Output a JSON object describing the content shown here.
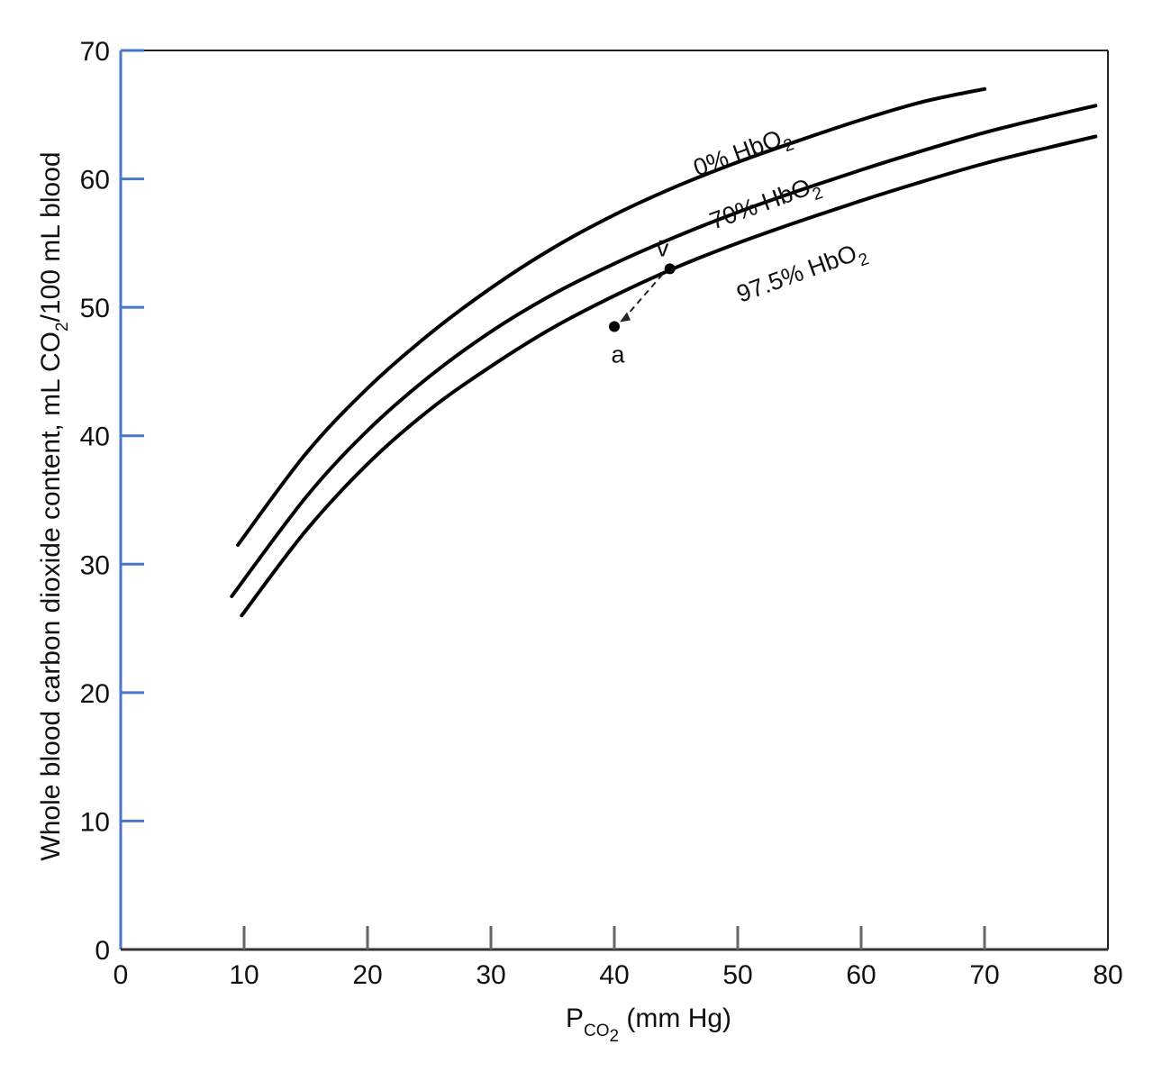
{
  "chart_data": {
    "type": "line",
    "title": "",
    "xlabel": {
      "main": "P",
      "sub": "CO",
      "subsub": "2",
      "unit": " (mm Hg)"
    },
    "ylabel": {
      "part1": "Whole blood carbon dioxide content, mL CO",
      "sub": "2",
      "part2": "/100 mL blood"
    },
    "xlim": [
      0,
      80
    ],
    "ylim": [
      0,
      70
    ],
    "xticks": [
      0,
      10,
      20,
      30,
      40,
      50,
      60,
      70,
      80
    ],
    "yticks": [
      0,
      10,
      20,
      30,
      40,
      50,
      60,
      70
    ],
    "grid": false,
    "colors": {
      "curve": "#000000",
      "axis": "#4a78c8",
      "frame": "#222222"
    },
    "series": [
      {
        "label": {
          "main": "0% HbO",
          "sub": "2"
        },
        "x": [
          9.5,
          15,
          20,
          25,
          30,
          35,
          40,
          45,
          50,
          55,
          60,
          65,
          70
        ],
        "y": [
          31.5,
          38.6,
          43.7,
          47.9,
          51.5,
          54.6,
          57.2,
          59.4,
          61.3,
          63.0,
          64.6,
          66.0,
          67.0
        ]
      },
      {
        "label": {
          "main": "70% HbO",
          "sub": "2"
        },
        "x": [
          9,
          15,
          20,
          25,
          30,
          35,
          40,
          45,
          50,
          55,
          60,
          65,
          70,
          75,
          79
        ],
        "y": [
          27.5,
          35.2,
          40.4,
          44.6,
          48.1,
          51.0,
          53.4,
          55.5,
          57.4,
          59.1,
          60.7,
          62.2,
          63.6,
          64.8,
          65.7
        ]
      },
      {
        "label": {
          "main": "97.5% HbO",
          "sub": "2"
        },
        "x": [
          9.8,
          15,
          20,
          25,
          30,
          35,
          40,
          45,
          50,
          55,
          60,
          65,
          70,
          75,
          79
        ],
        "y": [
          26.0,
          32.6,
          37.8,
          42.0,
          45.4,
          48.4,
          50.9,
          53.1,
          55.0,
          56.7,
          58.3,
          59.8,
          61.2,
          62.4,
          63.3
        ]
      }
    ],
    "points": [
      {
        "label": "v̄",
        "x": 44.5,
        "y": 53.0
      },
      {
        "label": "a",
        "x": 40,
        "y": 48.5
      }
    ]
  }
}
